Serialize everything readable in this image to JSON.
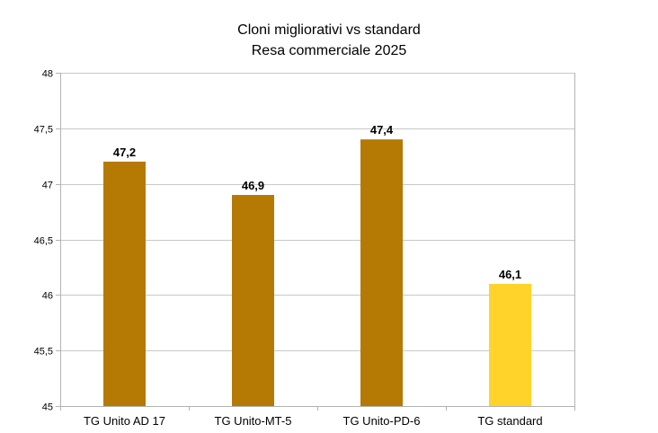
{
  "chart_data": {
    "type": "bar",
    "title": "Cloni migliorativi vs standard",
    "subtitle": "Resa commerciale 2025",
    "categories": [
      "TG Unito AD 17",
      "TG Unito-MT-5",
      "TG Unito-PD-6",
      "TG standard"
    ],
    "values": [
      47.2,
      46.9,
      47.4,
      46.1
    ],
    "data_labels": [
      "47,2",
      "46,9",
      "47,4",
      "46,1"
    ],
    "bar_colors": [
      "#b57a04",
      "#b57a04",
      "#b57a04",
      "#ffd32a"
    ],
    "ylim": [
      45,
      48
    ],
    "y_ticks": [
      45,
      45.5,
      46,
      46.5,
      47,
      47.5,
      48
    ],
    "y_tick_labels": [
      "45",
      "45,5",
      "46",
      "46,5",
      "47",
      "47,5",
      "48"
    ],
    "grid": true,
    "legend": false
  }
}
